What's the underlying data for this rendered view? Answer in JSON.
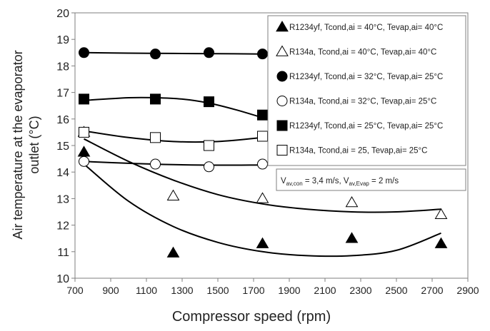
{
  "chart_data": {
    "type": "scatter",
    "xlabel": "Compressor speed (rpm)",
    "ylabel": "Air temperature at the evaporator outlet (°C)",
    "ylabel_lines": [
      "Air temperature at the evaporator",
      "outlet (°C)"
    ],
    "xlim": [
      700,
      2900
    ],
    "ylim": [
      10,
      20
    ],
    "xticks": [
      700,
      900,
      1100,
      1300,
      1500,
      1700,
      1900,
      2100,
      2300,
      2500,
      2700,
      2900
    ],
    "yticks": [
      10,
      11,
      12,
      13,
      14,
      15,
      16,
      17,
      18,
      19,
      20
    ],
    "grid": false,
    "legend_position": "top-right",
    "series": [
      {
        "name": "R1234yf, Tcond,ai = 40°C, Tevap,ai= 40°C",
        "marker": "triangle-filled",
        "x": [
          750,
          1250,
          1750,
          2250,
          2750
        ],
        "y": [
          14.75,
          10.95,
          11.3,
          11.5,
          11.3
        ],
        "trend": [
          [
            750,
            14.3
          ],
          [
            1000,
            12.9
          ],
          [
            1250,
            11.95
          ],
          [
            1500,
            11.35
          ],
          [
            1750,
            11.0
          ],
          [
            2000,
            10.85
          ],
          [
            2250,
            10.85
          ],
          [
            2500,
            11.05
          ],
          [
            2750,
            11.7
          ]
        ]
      },
      {
        "name": "R134a, Tcond,ai = 40°C, Tevap,ai= 40°C",
        "marker": "triangle-open",
        "x": [
          750,
          1250,
          1750,
          2250,
          2750
        ],
        "y": [
          15.5,
          13.1,
          13.0,
          12.85,
          12.4
        ],
        "trend": [
          [
            750,
            15.25
          ],
          [
            1000,
            14.4
          ],
          [
            1250,
            13.7
          ],
          [
            1500,
            13.15
          ],
          [
            1750,
            12.8
          ],
          [
            2000,
            12.6
          ],
          [
            2250,
            12.5
          ],
          [
            2500,
            12.5
          ],
          [
            2750,
            12.6
          ]
        ]
      },
      {
        "name": "R1234yf, Tcond,ai = 32°C, Tevap,ai= 25°C",
        "marker": "circle-filled",
        "x": [
          750,
          1150,
          1450,
          1750
        ],
        "y": [
          18.5,
          18.45,
          18.5,
          18.45
        ],
        "trend": [
          [
            750,
            18.5
          ],
          [
            1000,
            18.48
          ],
          [
            1250,
            18.47
          ],
          [
            1500,
            18.46
          ],
          [
            1750,
            18.45
          ]
        ]
      },
      {
        "name": "R134a, Tcond,ai = 32°C, Tevap,ai= 25°C",
        "marker": "circle-open",
        "x": [
          750,
          1150,
          1450,
          1750
        ],
        "y": [
          14.4,
          14.3,
          14.2,
          14.3
        ],
        "trend": [
          [
            750,
            14.4
          ],
          [
            1000,
            14.33
          ],
          [
            1250,
            14.28
          ],
          [
            1500,
            14.26
          ],
          [
            1750,
            14.27
          ]
        ]
      },
      {
        "name": "R1234yf, Tcond,ai = 25°C, Tevap,ai= 25°C",
        "marker": "square-filled",
        "x": [
          750,
          1150,
          1450,
          1750
        ],
        "y": [
          16.75,
          16.75,
          16.65,
          16.15
        ],
        "trend": [
          [
            750,
            16.7
          ],
          [
            1000,
            16.8
          ],
          [
            1150,
            16.8
          ],
          [
            1300,
            16.75
          ],
          [
            1450,
            16.6
          ],
          [
            1600,
            16.35
          ],
          [
            1750,
            16.05
          ]
        ]
      },
      {
        "name": "R134a, Tcond,ai = 25, Tevap,ai= 25°C",
        "marker": "square-open",
        "x": [
          750,
          1150,
          1450,
          1750
        ],
        "y": [
          15.5,
          15.3,
          15.0,
          15.35
        ],
        "trend": [
          [
            750,
            15.55
          ],
          [
            1000,
            15.3
          ],
          [
            1250,
            15.15
          ],
          [
            1500,
            15.15
          ],
          [
            1750,
            15.3
          ]
        ]
      }
    ],
    "annotation": "Vav,con = 3,4 m/s, Vav,Evap = 2 m/s",
    "annotation_parts": {
      "v1_base": "V",
      "v1_sub": "av,con",
      "v1_value": " = 3,4 m/s, ",
      "v2_base": "V",
      "v2_sub": "av,Evap",
      "v2_value": " = 2 m/s"
    }
  }
}
